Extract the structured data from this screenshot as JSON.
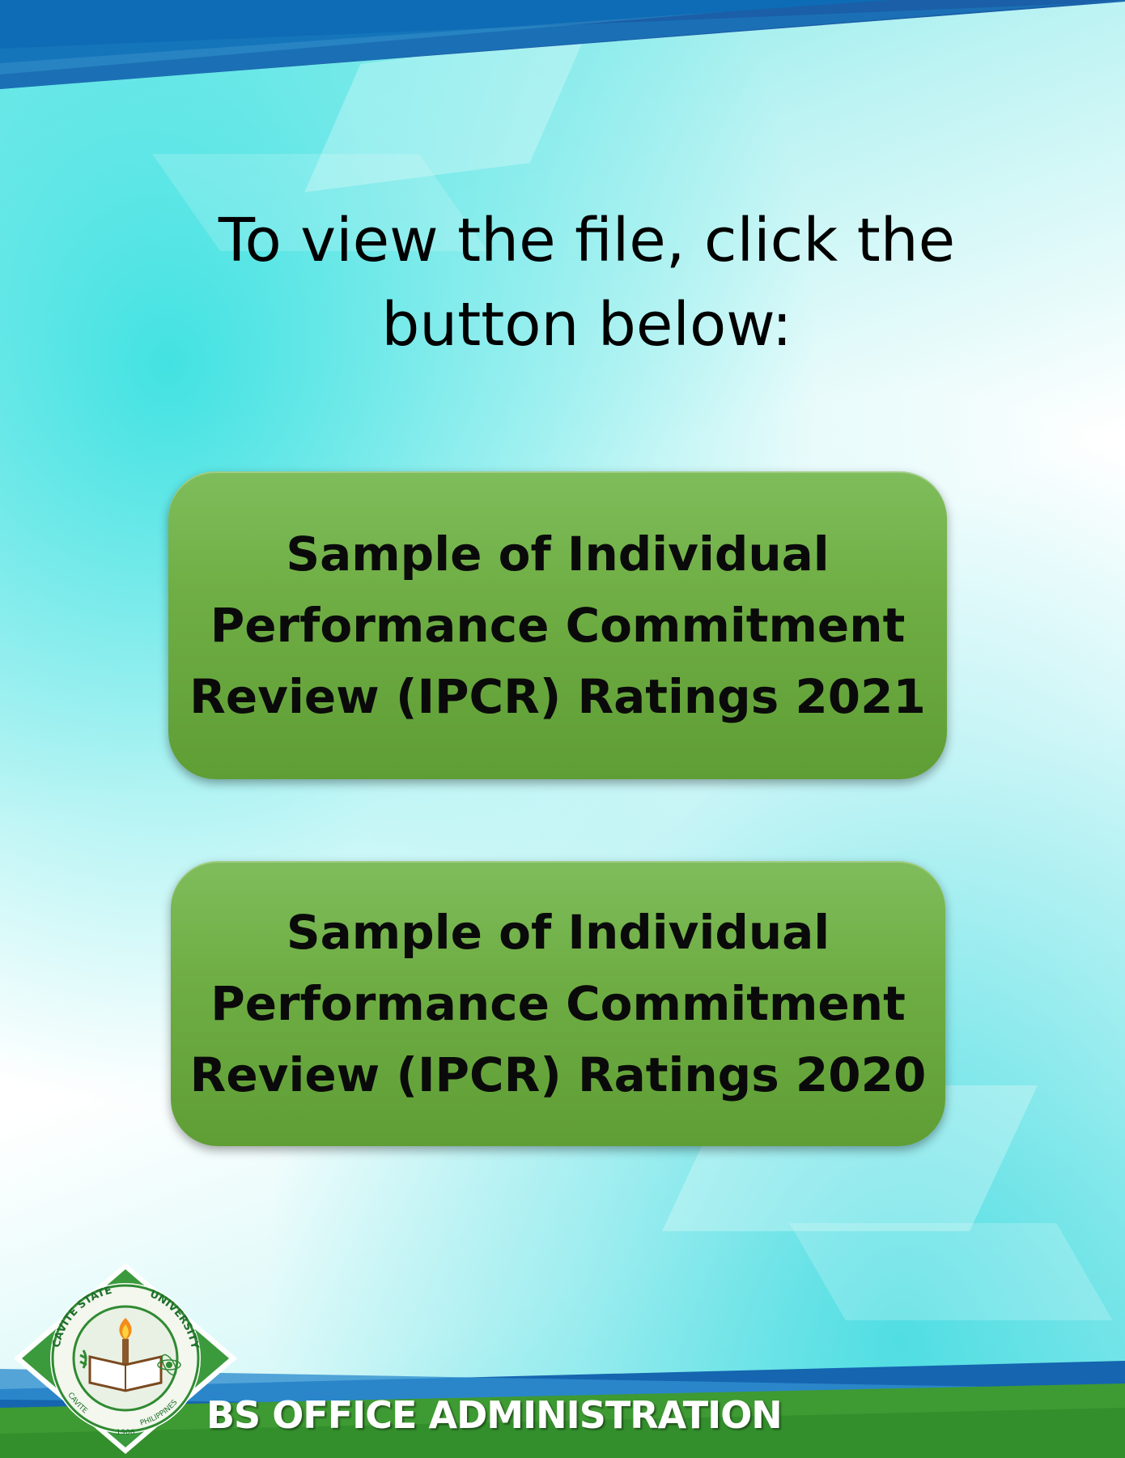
{
  "instruction": {
    "line1": "To view the file, click the",
    "line2": "button below:"
  },
  "buttons": [
    {
      "line1": "Sample of Individual",
      "line2": "Performance Commitment",
      "line3": "Review (IPCR) Ratings 2021"
    },
    {
      "line1": "Sample of Individual",
      "line2": "Performance Commitment",
      "line3": "Review (IPCR) Ratings 2020"
    }
  ],
  "logo": {
    "ring_top_left": "CAVITE STATE",
    "ring_top_right": "UNIVERSITY",
    "ring_bottom_left": "CAVITE",
    "ring_bottom_right": "PHILIPPINES",
    "year": "1906"
  },
  "footer": {
    "program": "BS OFFICE ADMINISTRATION"
  },
  "colors": {
    "button_green": "#6fae44",
    "band_blue": "#1565b0",
    "band_green": "#3e9a32",
    "accent_cyan": "#58dfe0"
  },
  "icons": {
    "logo": "cavite-state-university-seal-icon"
  }
}
